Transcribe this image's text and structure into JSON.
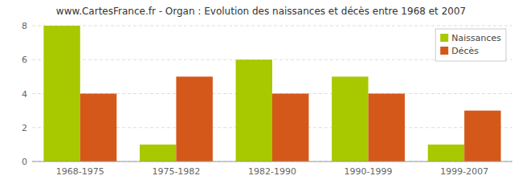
{
  "chart_data": {
    "type": "bar",
    "title": "www.CartesFrance.fr - Organ : Evolution des naissances et décès entre 1968 et 2007",
    "categories": [
      "1968-1975",
      "1975-1982",
      "1982-1990",
      "1990-1999",
      "1999-2007"
    ],
    "series": [
      {
        "name": "Naissances",
        "color": "#a8c800",
        "values": [
          8,
          1,
          6,
          5,
          1
        ]
      },
      {
        "name": "Décès",
        "color": "#d4581a",
        "values": [
          4,
          5,
          4,
          4,
          3
        ]
      }
    ],
    "ylim": [
      0,
      8
    ],
    "yticks": [
      0,
      2,
      4,
      6,
      8
    ],
    "grid": true,
    "legend": "upper right"
  }
}
